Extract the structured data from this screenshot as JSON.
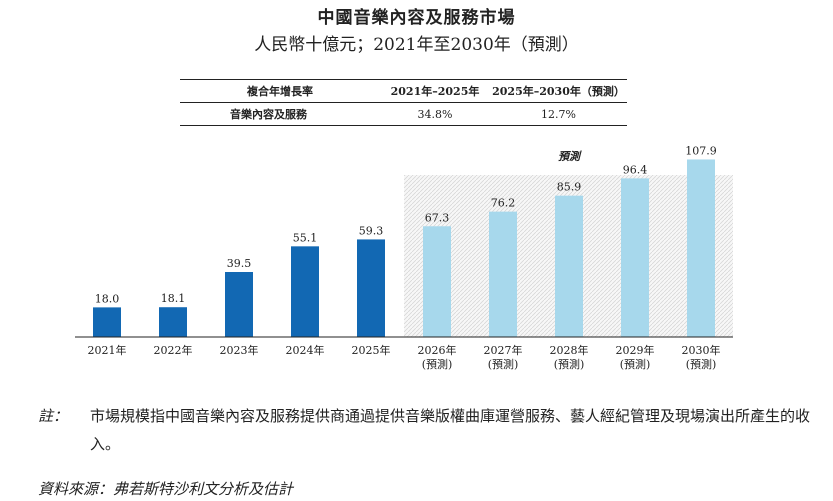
{
  "header": {
    "title": "中國音樂內容及服務市場",
    "subtitle": "人民幣十億元；2021年至2030年（預測）"
  },
  "cagr_table": {
    "columns": [
      "複合年增長率",
      "2021年–2025年",
      "2025年–2030年（預測）"
    ],
    "row_label": "音樂內容及服務",
    "values": [
      "34.8%",
      "12.7%"
    ]
  },
  "chart_data": {
    "type": "bar",
    "categories": [
      "2021年",
      "2022年",
      "2023年",
      "2024年",
      "2025年",
      "2026年",
      "2027年",
      "2028年",
      "2029年",
      "2030年"
    ],
    "sublabels": [
      "",
      "",
      "",
      "",
      "",
      "(預測)",
      "(預測)",
      "(預測)",
      "(預測)",
      "(預測)"
    ],
    "values": [
      18.0,
      18.1,
      39.5,
      55.1,
      59.3,
      67.3,
      76.2,
      85.9,
      96.4,
      107.9
    ],
    "forecast_from_index": 5,
    "forecast_label": "預測",
    "colors": {
      "actual": "#1268b3",
      "forecast": "#a7d8ec",
      "forecast_bg": "#e9e9e9"
    },
    "ylim": [
      0,
      110
    ],
    "xlabel": "",
    "ylabel": ""
  },
  "note": {
    "label": "註：",
    "text": "市場規模指中國音樂內容及服務提供商通過提供音樂版權曲庫運營服務、藝人經紀管理及現場演出所產生的收入。"
  },
  "source": "資料來源：弗若斯特沙利文分析及估計"
}
